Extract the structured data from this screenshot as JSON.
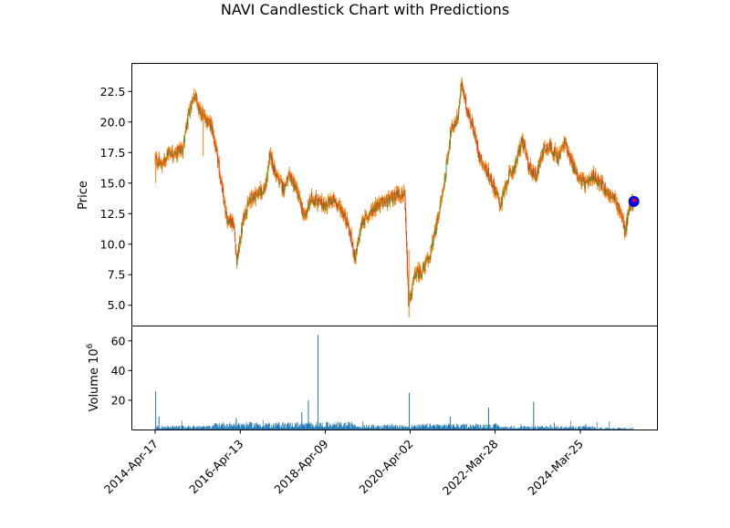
{
  "chart_data": {
    "type": "candlestick",
    "title": "NAVI Candlestick Chart with Predictions",
    "price_panel": {
      "ylabel": "Price",
      "ylim": [
        3.3,
        24.8
      ],
      "yticks": [
        5.0,
        7.5,
        10.0,
        12.5,
        15.0,
        17.5,
        20.0,
        22.5
      ],
      "ytick_labels": [
        "5.0",
        "7.5",
        "10.0",
        "12.5",
        "15.0",
        "17.5",
        "20.0",
        "22.5"
      ],
      "candle_colors": {
        "up": "#2ca02c",
        "down": "#d62728",
        "wick": "#ff7f0e"
      },
      "price_path": [
        [
          "2014-04-17",
          17.0
        ],
        [
          "2014-06-15",
          16.4
        ],
        [
          "2014-08-10",
          17.6
        ],
        [
          "2014-10-10",
          17.4
        ],
        [
          "2014-12-10",
          17.9
        ],
        [
          "2015-02-10",
          21.2
        ],
        [
          "2015-03-20",
          22.4
        ],
        [
          "2015-05-01",
          20.8
        ],
        [
          "2015-06-20",
          20.4
        ],
        [
          "2015-08-15",
          19.6
        ],
        [
          "2015-10-15",
          16.2
        ],
        [
          "2015-12-15",
          12.2
        ],
        [
          "2016-02-15",
          11.8
        ],
        [
          "2016-03-15",
          8.6
        ],
        [
          "2016-05-15",
          12.4
        ],
        [
          "2016-07-15",
          13.8
        ],
        [
          "2016-09-15",
          14.2
        ],
        [
          "2016-11-15",
          14.6
        ],
        [
          "2016-12-20",
          17.3
        ],
        [
          "2017-02-15",
          15.6
        ],
        [
          "2017-04-15",
          14.6
        ],
        [
          "2017-06-15",
          15.6
        ],
        [
          "2017-08-15",
          14.2
        ],
        [
          "2017-10-10",
          12.2
        ],
        [
          "2017-12-15",
          13.8
        ],
        [
          "2018-02-15",
          13.4
        ],
        [
          "2018-04-15",
          13.2
        ],
        [
          "2018-06-15",
          13.6
        ],
        [
          "2018-08-15",
          13.0
        ],
        [
          "2018-10-15",
          11.8
        ],
        [
          "2018-12-20",
          8.8
        ],
        [
          "2019-02-15",
          11.8
        ],
        [
          "2019-04-15",
          12.4
        ],
        [
          "2019-06-15",
          13.2
        ],
        [
          "2019-08-15",
          13.4
        ],
        [
          "2019-10-15",
          13.6
        ],
        [
          "2019-12-15",
          14.2
        ],
        [
          "2020-02-15",
          14.0
        ],
        [
          "2020-03-20",
          5.0
        ],
        [
          "2020-05-15",
          7.6
        ],
        [
          "2020-07-15",
          7.8
        ],
        [
          "2020-09-15",
          9.0
        ],
        [
          "2020-11-15",
          11.6
        ],
        [
          "2021-01-15",
          14.8
        ],
        [
          "2021-03-15",
          19.2
        ],
        [
          "2021-05-15",
          20.4
        ],
        [
          "2021-06-15",
          23.2
        ],
        [
          "2021-07-20",
          21.4
        ],
        [
          "2021-09-15",
          19.8
        ],
        [
          "2021-11-15",
          17.2
        ],
        [
          "2022-01-15",
          16.0
        ],
        [
          "2022-03-15",
          14.8
        ],
        [
          "2022-05-15",
          13.2
        ],
        [
          "2022-07-15",
          15.4
        ],
        [
          "2022-09-15",
          16.4
        ],
        [
          "2022-11-15",
          18.6
        ],
        [
          "2023-01-15",
          16.2
        ],
        [
          "2023-03-15",
          15.6
        ],
        [
          "2023-05-15",
          17.8
        ],
        [
          "2023-07-15",
          18.0
        ],
        [
          "2023-09-15",
          17.0
        ],
        [
          "2023-11-15",
          18.4
        ],
        [
          "2024-01-15",
          16.6
        ],
        [
          "2024-03-15",
          15.4
        ],
        [
          "2024-05-15",
          14.8
        ],
        [
          "2024-07-15",
          15.6
        ],
        [
          "2024-09-15",
          15.0
        ],
        [
          "2024-11-15",
          14.2
        ],
        [
          "2025-01-15",
          13.6
        ],
        [
          "2025-03-15",
          12.4
        ],
        [
          "2025-04-10",
          10.8
        ],
        [
          "2025-05-20",
          13.2
        ],
        [
          "2025-06-20",
          13.4
        ]
      ],
      "prediction_markers": [
        {
          "date": "2025-06-25",
          "price": 13.5,
          "color": "#0000ff"
        },
        {
          "date": "2025-06-27",
          "price": 13.6,
          "color": "#ff0000"
        }
      ]
    },
    "volume_panel": {
      "ylabel": "Volume  10",
      "ylabel_exponent": "6",
      "ylim": [
        0,
        70
      ],
      "yticks": [
        20,
        40,
        60
      ],
      "ytick_labels": [
        "20",
        "40",
        "60"
      ],
      "bar_color": "#1f77b4",
      "spikes": [
        [
          "2014-04-22",
          26
        ],
        [
          "2014-05-20",
          9
        ],
        [
          "2016-03-10",
          8
        ],
        [
          "2017-09-20",
          12
        ],
        [
          "2017-11-15",
          20
        ],
        [
          "2018-02-05",
          64
        ],
        [
          "2020-03-25",
          25
        ],
        [
          "2021-03-10",
          9
        ],
        [
          "2022-02-01",
          15
        ],
        [
          "2023-02-20",
          19
        ],
        [
          "2023-08-15",
          5
        ],
        [
          "2024-05-10",
          4
        ]
      ]
    },
    "x_axis": {
      "tick_labels": [
        "2014-Apr-17",
        "2016-Apr-13",
        "2018-Apr-09",
        "2020-Apr-02",
        "2022-Mar-28",
        "2024-Mar-25"
      ],
      "tick_dates": [
        "2014-04-17",
        "2016-04-13",
        "2018-04-09",
        "2020-04-02",
        "2022-03-28",
        "2024-03-25"
      ],
      "range": [
        "2014-04-17",
        "2025-06-27"
      ],
      "grid": false
    }
  }
}
